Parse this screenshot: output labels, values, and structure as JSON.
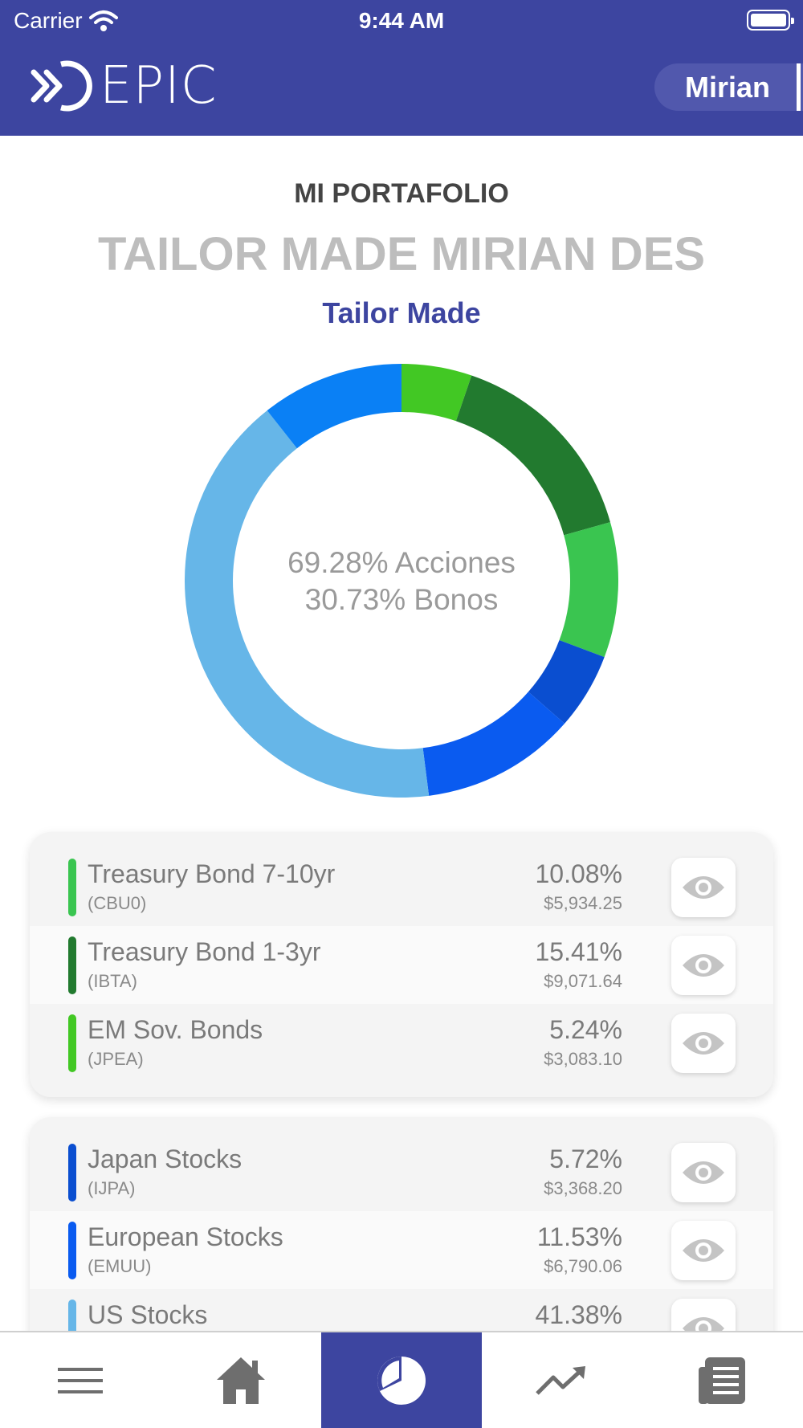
{
  "status_bar": {
    "carrier": "Carrier",
    "time": "9:44 AM"
  },
  "header": {
    "logo_text": "EPIC",
    "user_name": "Mirian"
  },
  "titles": {
    "section": "MI PORTAFOLIO",
    "portfolio_name": "TAILOR MADE MIRIAN DES",
    "portfolio_type": "Tailor Made"
  },
  "donut": {
    "line1": "69.28% Acciones",
    "line2": "30.73% Bonos",
    "colors": [
      "#42c824",
      "#227a2f",
      "#3ac550",
      "#0a4ed0",
      "#0a5bf0",
      "#66b6e8",
      "#0a80f5"
    ],
    "values": [
      5.24,
      15.41,
      10.08,
      5.72,
      11.53,
      41.38,
      10.64
    ]
  },
  "card_bonds": {
    "rows": [
      {
        "name": "Treasury Bond 7-10yr",
        "ticker": "(CBU0)",
        "pct": "10.08%",
        "amount": "$5,934.25",
        "color": "#3ac550"
      },
      {
        "name": "Treasury Bond 1-3yr",
        "ticker": "(IBTA)",
        "pct": "15.41%",
        "amount": "$9,071.64",
        "color": "#227a2f"
      },
      {
        "name": "EM Sov. Bonds",
        "ticker": "(JPEA)",
        "pct": "5.24%",
        "amount": "$3,083.10",
        "color": "#42c824"
      }
    ]
  },
  "card_stocks": {
    "rows": [
      {
        "name": "Japan Stocks",
        "ticker": "(IJPA)",
        "pct": "5.72%",
        "amount": "$3,368.20",
        "color": "#0a4ed0"
      },
      {
        "name": "European Stocks",
        "ticker": "(EMUU)",
        "pct": "11.53%",
        "amount": "$6,790.06",
        "color": "#0a5bf0"
      },
      {
        "name": "US Stocks",
        "ticker": "",
        "pct": "41.38%",
        "amount": "",
        "color": "#66b6e8"
      }
    ]
  },
  "nav": {
    "items": [
      {
        "icon": "menu-icon"
      },
      {
        "icon": "home-icon"
      },
      {
        "icon": "pie-chart-icon",
        "active": true
      },
      {
        "icon": "trend-up-icon"
      },
      {
        "icon": "document-icon"
      }
    ]
  }
}
